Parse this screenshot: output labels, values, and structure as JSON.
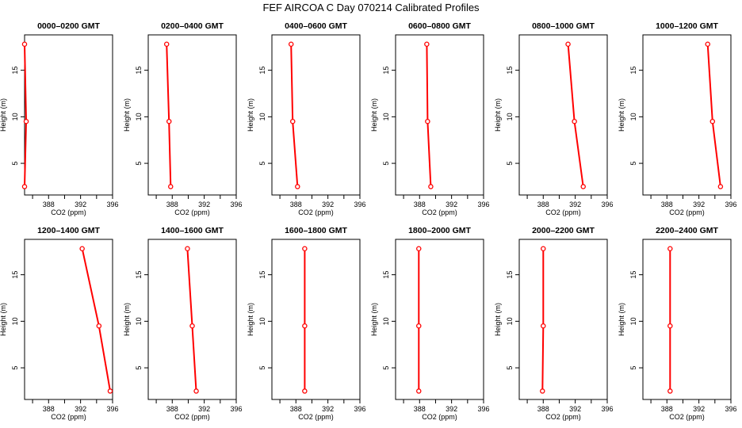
{
  "figure": {
    "title": "FEF AIRCOA C  Day 070214  Calibrated Profiles"
  },
  "chart_data": [
    {
      "type": "line",
      "title": "0000–0200 GMT",
      "xlabel": "CO2 (ppm)",
      "ylabel": "Height (m)",
      "xlim": [
        385.0,
        396.0
      ],
      "ylim": [
        1.6,
        18.8
      ],
      "xticks": [
        "388",
        "392",
        "396"
      ],
      "yticks": [
        "5",
        "10",
        "15"
      ],
      "x": [
        385.0,
        385.2,
        385.0
      ],
      "y": [
        2.5,
        9.5,
        17.8
      ],
      "color": "#ff0000"
    },
    {
      "type": "line",
      "title": "0200–0400 GMT",
      "xlabel": "CO2 (ppm)",
      "ylabel": "Height (m)",
      "xlim": [
        385.0,
        396.0
      ],
      "ylim": [
        1.6,
        18.8
      ],
      "xticks": [
        "388",
        "392",
        "396"
      ],
      "yticks": [
        "5",
        "10",
        "15"
      ],
      "x": [
        387.8,
        387.6,
        387.3
      ],
      "y": [
        2.5,
        9.5,
        17.8
      ],
      "color": "#ff0000"
    },
    {
      "type": "line",
      "title": "0400–0600 GMT",
      "xlabel": "CO2 (ppm)",
      "ylabel": "Height (m)",
      "xlim": [
        385.0,
        396.0
      ],
      "ylim": [
        1.6,
        18.8
      ],
      "xticks": [
        "388",
        "392",
        "396"
      ],
      "yticks": [
        "5",
        "10",
        "15"
      ],
      "x": [
        388.2,
        387.6,
        387.4
      ],
      "y": [
        2.5,
        9.5,
        17.8
      ],
      "color": "#ff0000"
    },
    {
      "type": "line",
      "title": "0600–0800 GMT",
      "xlabel": "CO2 (ppm)",
      "ylabel": "Height (m)",
      "xlim": [
        385.0,
        396.0
      ],
      "ylim": [
        1.6,
        18.8
      ],
      "xticks": [
        "388",
        "392",
        "396"
      ],
      "yticks": [
        "5",
        "10",
        "15"
      ],
      "x": [
        389.4,
        389.0,
        388.9
      ],
      "y": [
        2.5,
        9.5,
        17.8
      ],
      "color": "#ff0000"
    },
    {
      "type": "line",
      "title": "0800–1000 GMT",
      "xlabel": "CO2 (ppm)",
      "ylabel": "Height (m)",
      "xlim": [
        385.0,
        396.0
      ],
      "ylim": [
        1.6,
        18.8
      ],
      "xticks": [
        "388",
        "392",
        "396"
      ],
      "yticks": [
        "5",
        "10",
        "15"
      ],
      "x": [
        393.0,
        391.9,
        391.1
      ],
      "y": [
        2.5,
        9.5,
        17.8
      ],
      "color": "#ff0000"
    },
    {
      "type": "line",
      "title": "1000–1200 GMT",
      "xlabel": "CO2 (ppm)",
      "ylabel": "Height (m)",
      "xlim": [
        385.0,
        396.0
      ],
      "ylim": [
        1.6,
        18.8
      ],
      "xticks": [
        "388",
        "392",
        "396"
      ],
      "yticks": [
        "5",
        "10",
        "15"
      ],
      "x": [
        394.7,
        393.7,
        393.1
      ],
      "y": [
        2.5,
        9.5,
        17.8
      ],
      "color": "#ff0000"
    },
    {
      "type": "line",
      "title": "1200–1400 GMT",
      "xlabel": "CO2 (ppm)",
      "ylabel": "Height (m)",
      "xlim": [
        385.0,
        396.0
      ],
      "ylim": [
        1.6,
        18.8
      ],
      "xticks": [
        "388",
        "392",
        "396"
      ],
      "yticks": [
        "5",
        "10",
        "15"
      ],
      "x": [
        395.7,
        394.3,
        392.2
      ],
      "y": [
        2.5,
        9.5,
        17.8
      ],
      "color": "#ff0000"
    },
    {
      "type": "line",
      "title": "1400–1600 GMT",
      "xlabel": "CO2 (ppm)",
      "ylabel": "Height (m)",
      "xlim": [
        385.0,
        396.0
      ],
      "ylim": [
        1.6,
        18.8
      ],
      "xticks": [
        "388",
        "392",
        "396"
      ],
      "yticks": [
        "5",
        "10",
        "15"
      ],
      "x": [
        391.0,
        390.5,
        389.9
      ],
      "y": [
        2.5,
        9.5,
        17.8
      ],
      "color": "#ff0000"
    },
    {
      "type": "line",
      "title": "1600–1800 GMT",
      "xlabel": "CO2 (ppm)",
      "ylabel": "Height (m)",
      "xlim": [
        385.0,
        396.0
      ],
      "ylim": [
        1.6,
        18.8
      ],
      "xticks": [
        "388",
        "392",
        "396"
      ],
      "yticks": [
        "5",
        "10",
        "15"
      ],
      "x": [
        389.1,
        389.1,
        389.1
      ],
      "y": [
        2.5,
        9.5,
        17.8
      ],
      "color": "#ff0000"
    },
    {
      "type": "line",
      "title": "1800–2000 GMT",
      "xlabel": "CO2 (ppm)",
      "ylabel": "Height (m)",
      "xlim": [
        385.0,
        396.0
      ],
      "ylim": [
        1.6,
        18.8
      ],
      "xticks": [
        "388",
        "392",
        "396"
      ],
      "yticks": [
        "5",
        "10",
        "15"
      ],
      "x": [
        387.9,
        387.9,
        387.9
      ],
      "y": [
        2.5,
        9.5,
        17.8
      ],
      "color": "#ff0000"
    },
    {
      "type": "line",
      "title": "2000–2200 GMT",
      "xlabel": "CO2 (ppm)",
      "ylabel": "Height (m)",
      "xlim": [
        385.0,
        396.0
      ],
      "ylim": [
        1.6,
        18.8
      ],
      "xticks": [
        "388",
        "392",
        "396"
      ],
      "yticks": [
        "5",
        "10",
        "15"
      ],
      "x": [
        387.9,
        388.0,
        388.0
      ],
      "y": [
        2.5,
        9.5,
        17.8
      ],
      "color": "#ff0000"
    },
    {
      "type": "line",
      "title": "2200–2400 GMT",
      "xlabel": "CO2 (ppm)",
      "ylabel": "Height (m)",
      "xlim": [
        385.0,
        396.0
      ],
      "ylim": [
        1.6,
        18.8
      ],
      "xticks": [
        "388",
        "392",
        "396"
      ],
      "yticks": [
        "5",
        "10",
        "15"
      ],
      "x": [
        388.4,
        388.4,
        388.4
      ],
      "y": [
        2.5,
        9.5,
        17.8
      ],
      "color": "#ff0000"
    }
  ]
}
